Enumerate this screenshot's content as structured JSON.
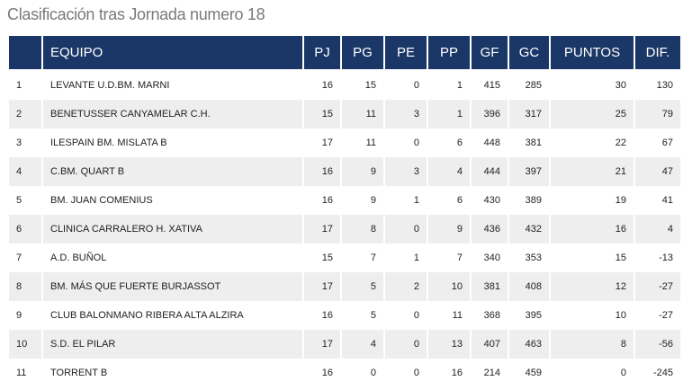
{
  "page": {
    "title": "Clasificación tras Jornada numero 18"
  },
  "table": {
    "headers": {
      "pos": "",
      "team": "EQUIPO",
      "pj": "PJ",
      "pg": "PG",
      "pe": "PE",
      "pp": "PP",
      "gf": "GF",
      "gc": "GC",
      "puntos": "PUNTOS",
      "dif": "DIF."
    },
    "rows": [
      {
        "pos": "1",
        "team": "LEVANTE U.D.BM. MARNI",
        "pj": "16",
        "pg": "15",
        "pe": "0",
        "pp": "1",
        "gf": "415",
        "gc": "285",
        "puntos": "30",
        "dif": "130"
      },
      {
        "pos": "2",
        "team": "BENETUSSER CANYAMELAR C.H.",
        "pj": "15",
        "pg": "11",
        "pe": "3",
        "pp": "1",
        "gf": "396",
        "gc": "317",
        "puntos": "25",
        "dif": "79"
      },
      {
        "pos": "3",
        "team": "ILESPAIN BM. MISLATA B",
        "pj": "17",
        "pg": "11",
        "pe": "0",
        "pp": "6",
        "gf": "448",
        "gc": "381",
        "puntos": "22",
        "dif": "67"
      },
      {
        "pos": "4",
        "team": "C.BM. QUART B",
        "pj": "16",
        "pg": "9",
        "pe": "3",
        "pp": "4",
        "gf": "444",
        "gc": "397",
        "puntos": "21",
        "dif": "47"
      },
      {
        "pos": "5",
        "team": "BM. JUAN COMENIUS",
        "pj": "16",
        "pg": "9",
        "pe": "1",
        "pp": "6",
        "gf": "430",
        "gc": "389",
        "puntos": "19",
        "dif": "41"
      },
      {
        "pos": "6",
        "team": "CLINICA CARRALERO H. XATIVA",
        "pj": "17",
        "pg": "8",
        "pe": "0",
        "pp": "9",
        "gf": "436",
        "gc": "432",
        "puntos": "16",
        "dif": "4"
      },
      {
        "pos": "7",
        "team": "A.D. BUÑOL",
        "pj": "15",
        "pg": "7",
        "pe": "1",
        "pp": "7",
        "gf": "340",
        "gc": "353",
        "puntos": "15",
        "dif": "-13"
      },
      {
        "pos": "8",
        "team": "BM. MÁS QUE FUERTE BURJASSOT",
        "pj": "17",
        "pg": "5",
        "pe": "2",
        "pp": "10",
        "gf": "381",
        "gc": "408",
        "puntos": "12",
        "dif": "-27"
      },
      {
        "pos": "9",
        "team": "CLUB BALONMANO RIBERA ALTA ALZIRA",
        "pj": "16",
        "pg": "5",
        "pe": "0",
        "pp": "11",
        "gf": "368",
        "gc": "395",
        "puntos": "10",
        "dif": "-27"
      },
      {
        "pos": "10",
        "team": "S.D. EL PILAR",
        "pj": "17",
        "pg": "4",
        "pe": "0",
        "pp": "13",
        "gf": "407",
        "gc": "463",
        "puntos": "8",
        "dif": "-56"
      },
      {
        "pos": "11",
        "team": "TORRENT B",
        "pj": "16",
        "pg": "0",
        "pe": "0",
        "pp": "16",
        "gf": "214",
        "gc": "459",
        "puntos": "0",
        "dif": "-245"
      }
    ]
  },
  "colors": {
    "header_bg": "#1b3767",
    "header_text": "#ffffff",
    "stripe_row": "#eeeeee",
    "title_text": "#7a7a7a"
  }
}
